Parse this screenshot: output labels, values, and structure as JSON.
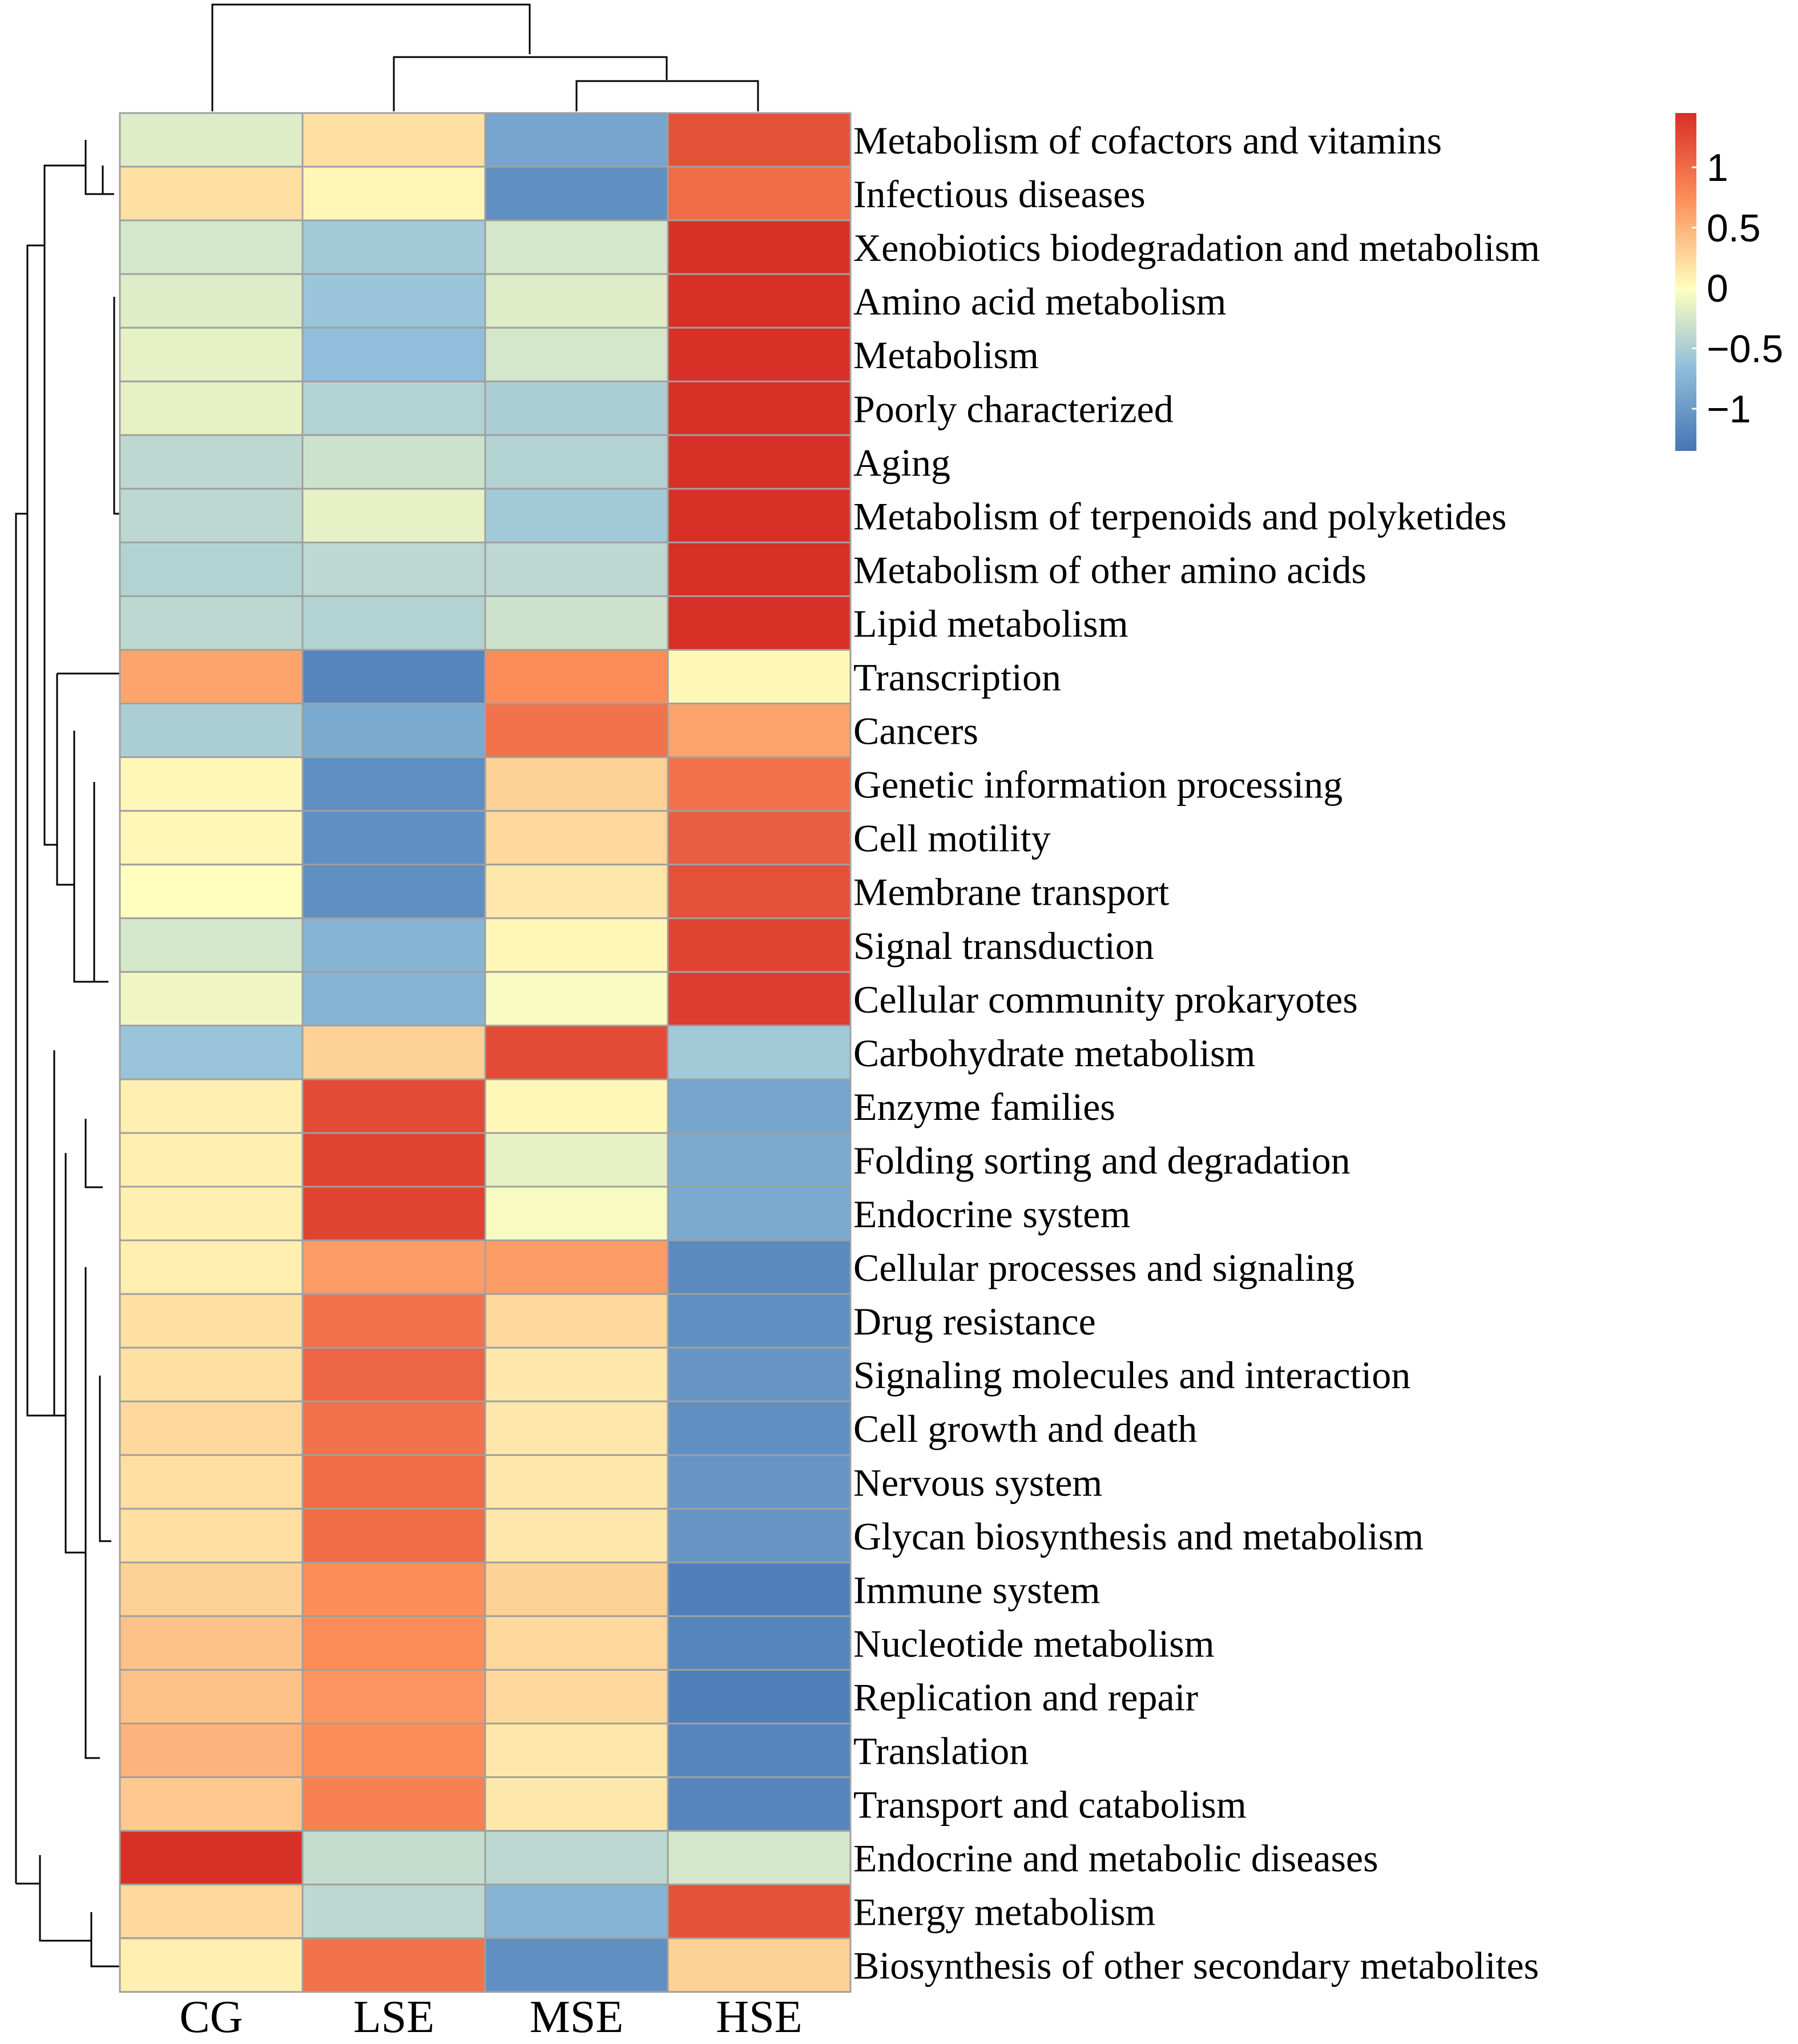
{
  "chart_data": {
    "type": "heatmap",
    "title": "",
    "columns": [
      "CG",
      "LSE",
      "MSE",
      "HSE"
    ],
    "rows": [
      "Metabolism of cofactors and vitamins",
      "Infectious diseases",
      "Xenobiotics biodegradation and metabolism",
      "Amino acid metabolism",
      "Metabolism",
      "Poorly characterized",
      "Aging",
      "Metabolism of terpenoids and polyketides",
      "Metabolism of other amino acids",
      "Lipid metabolism",
      "Transcription",
      "Cancers",
      "Genetic information processing",
      "Cell motility",
      "Membrane transport",
      "Signal transduction",
      "Cellular community prokaryotes",
      "Carbohydrate metabolism",
      "Enzyme families",
      "Folding sorting and degradation",
      "Endocrine system",
      "Cellular processes and signaling",
      "Drug resistance",
      "Signaling molecules and interaction",
      "Cell growth and death",
      "Nervous system",
      "Glycan biosynthesis and metabolism",
      "Immune system",
      "Nucleotide metabolism",
      "Replication and repair",
      "Translation",
      "Transport and catabolism",
      "Endocrine and metabolic diseases",
      "Energy metabolism",
      "Biosynthesis of other secondary metabolites"
    ],
    "values": [
      [
        -0.2,
        0.2,
        -0.9,
        1.2
      ],
      [
        0.2,
        0.05,
        -1.1,
        1.0
      ],
      [
        -0.25,
        -0.55,
        -0.25,
        1.45
      ],
      [
        -0.2,
        -0.6,
        -0.2,
        1.45
      ],
      [
        -0.15,
        -0.65,
        -0.25,
        1.45
      ],
      [
        -0.15,
        -0.45,
        -0.5,
        1.45
      ],
      [
        -0.4,
        -0.3,
        -0.45,
        1.45
      ],
      [
        -0.4,
        -0.15,
        -0.55,
        1.45
      ],
      [
        -0.45,
        -0.4,
        -0.4,
        1.45
      ],
      [
        -0.4,
        -0.45,
        -0.3,
        1.45
      ],
      [
        0.6,
        -1.2,
        0.75,
        0.05
      ],
      [
        -0.5,
        -0.85,
        0.95,
        0.6
      ],
      [
        0.05,
        -1.1,
        0.3,
        0.95
      ],
      [
        0.05,
        -1.1,
        0.25,
        1.1
      ],
      [
        0.0,
        -1.1,
        0.15,
        1.2
      ],
      [
        -0.25,
        -0.75,
        0.05,
        1.3
      ],
      [
        -0.1,
        -0.75,
        -0.05,
        1.35
      ],
      [
        -0.6,
        0.3,
        1.25,
        -0.55
      ],
      [
        0.1,
        1.25,
        0.05,
        -0.9
      ],
      [
        0.1,
        1.3,
        -0.15,
        -0.85
      ],
      [
        0.1,
        1.3,
        -0.05,
        -0.85
      ],
      [
        0.1,
        0.65,
        0.65,
        -1.15
      ],
      [
        0.2,
        0.95,
        0.25,
        -1.1
      ],
      [
        0.2,
        1.05,
        0.15,
        -1.05
      ],
      [
        0.25,
        0.95,
        0.15,
        -1.1
      ],
      [
        0.2,
        1.0,
        0.15,
        -1.05
      ],
      [
        0.2,
        1.0,
        0.15,
        -1.05
      ],
      [
        0.3,
        0.75,
        0.3,
        -1.25
      ],
      [
        0.4,
        0.75,
        0.25,
        -1.2
      ],
      [
        0.4,
        0.7,
        0.25,
        -1.25
      ],
      [
        0.5,
        0.75,
        0.15,
        -1.2
      ],
      [
        0.35,
        0.85,
        0.15,
        -1.2
      ],
      [
        1.45,
        -0.35,
        -0.4,
        -0.25
      ],
      [
        0.25,
        -0.4,
        -0.75,
        1.2
      ],
      [
        0.1,
        0.95,
        -1.1,
        0.3
      ]
    ],
    "color_scale": {
      "min": -1.35,
      "max": 1.45,
      "low_color": "#4575b4",
      "mid_color": "#ffffbf",
      "high_color": "#d73027",
      "legend_ticks": [
        1,
        0.5,
        0,
        -0.5,
        -1
      ],
      "legend_tick_labels": [
        "1",
        "0.5",
        "0",
        "−0.5",
        "−1"
      ],
      "legend_position": "top-right"
    },
    "column_dendrogram": "((CG),((LSE),((MSE),(HSE))))",
    "row_dendrogram": "three main clusters: HSE-high group, LSE-high group, mixed tail"
  }
}
